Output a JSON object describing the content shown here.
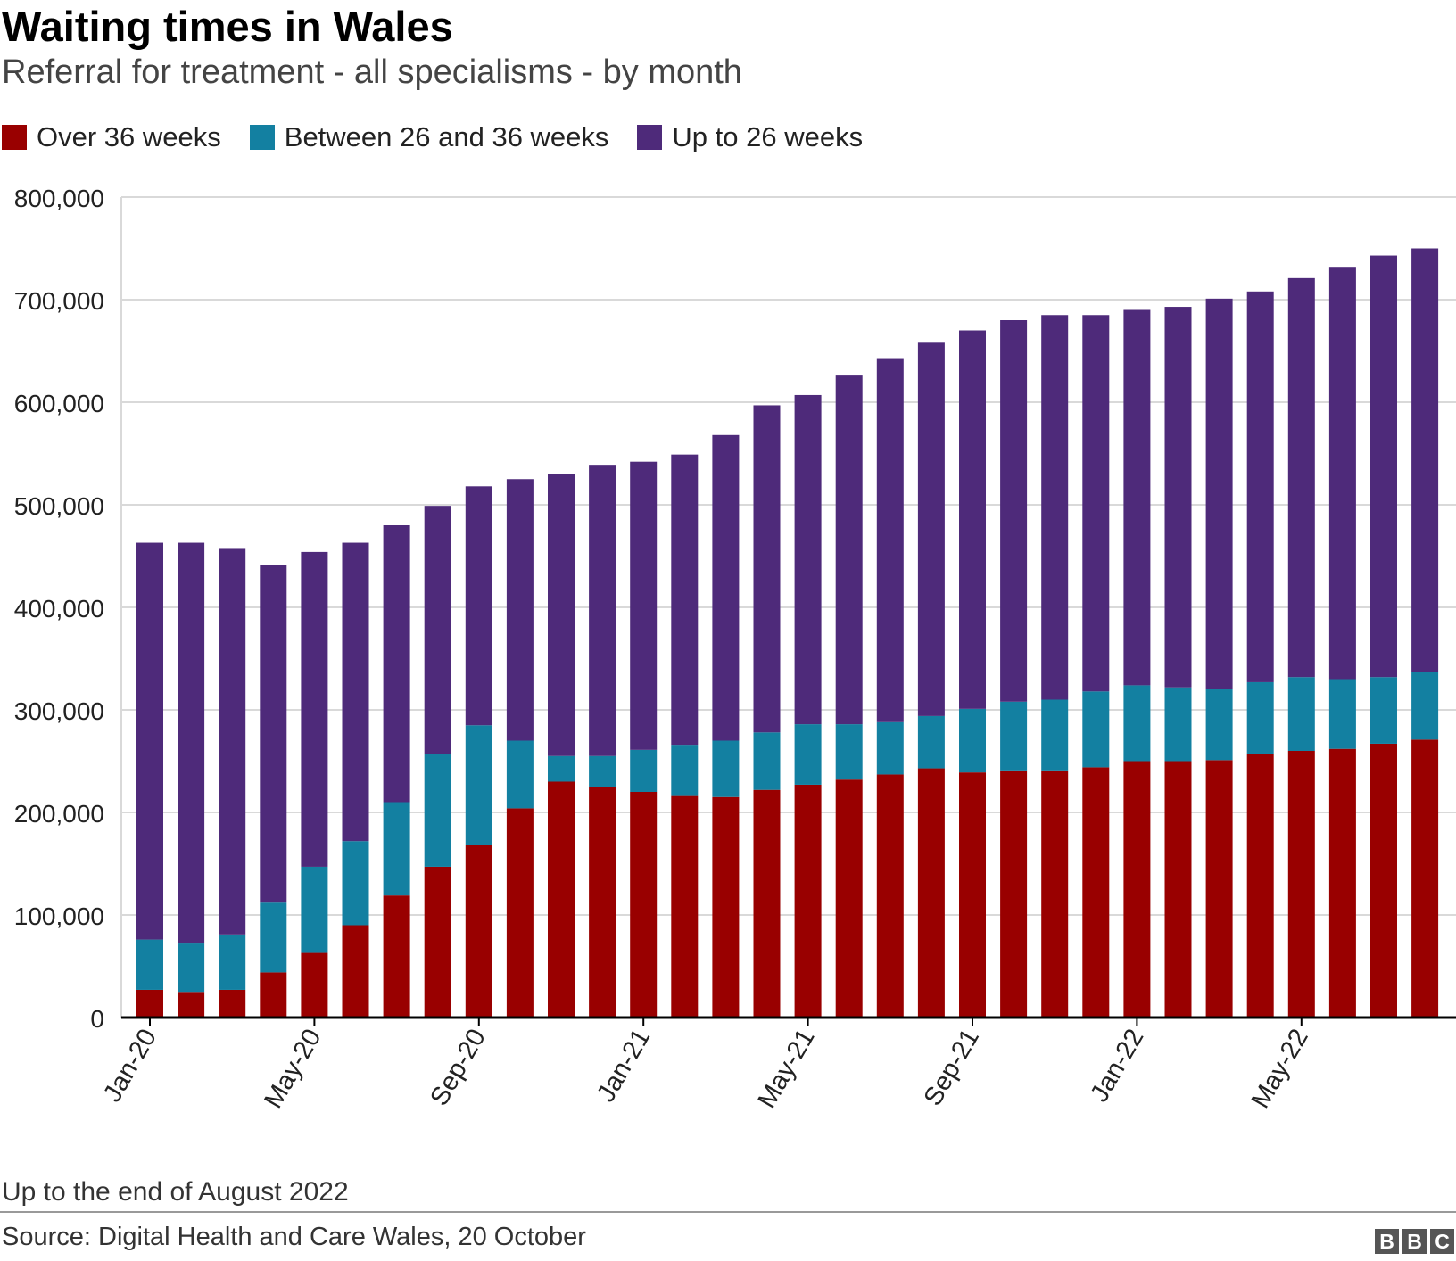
{
  "title": "Waiting times in Wales",
  "subtitle": "Referral for treatment - all specialisms - by month",
  "note": "Up to the end of August 2022",
  "source": "Source: Digital Health and Care Wales, 20 October",
  "logo": {
    "letters": [
      "B",
      "B",
      "C"
    ]
  },
  "colors": {
    "over36": "#990000",
    "between26and36": "#1380A1",
    "upto26": "#4E2A7A",
    "grid": "#D9D9D9",
    "axis": "#000000"
  },
  "legend": [
    {
      "label": "Over 36 weeks",
      "color": "#990000"
    },
    {
      "label": "Between 26 and 36 weeks",
      "color": "#1380A1"
    },
    {
      "label": "Up to 26 weeks",
      "color": "#4E2A7A"
    }
  ],
  "chart_data": {
    "type": "bar",
    "stacked": true,
    "title": "Waiting times in Wales",
    "subtitle": "Referral for treatment - all specialisms - by month",
    "xlabel": "",
    "ylabel": "",
    "ylim": [
      0,
      800000
    ],
    "yticks": [
      0,
      100000,
      200000,
      300000,
      400000,
      500000,
      600000,
      700000,
      800000
    ],
    "ytick_labels": [
      "0",
      "100,000",
      "200,000",
      "300,000",
      "400,000",
      "500,000",
      "600,000",
      "700,000",
      "800,000"
    ],
    "grid": true,
    "legend_position": "top-left",
    "categories": [
      "Jan-20",
      "Feb-20",
      "Mar-20",
      "Apr-20",
      "May-20",
      "Jun-20",
      "Jul-20",
      "Aug-20",
      "Sep-20",
      "Oct-20",
      "Nov-20",
      "Dec-20",
      "Jan-21",
      "Feb-21",
      "Mar-21",
      "Apr-21",
      "May-21",
      "Jun-21",
      "Jul-21",
      "Aug-21",
      "Sep-21",
      "Oct-21",
      "Nov-21",
      "Dec-21",
      "Jan-22",
      "Feb-22",
      "Mar-22",
      "Apr-22",
      "May-22",
      "Jun-22",
      "Jul-22",
      "Aug-22"
    ],
    "visible_tick_labels": [
      "Jan-20",
      "May-20",
      "Sep-20",
      "Jan-21",
      "May-21",
      "Sep-21",
      "Jan-22",
      "May-22"
    ],
    "series": [
      {
        "name": "Over 36 weeks",
        "color": "#990000",
        "values": [
          27000,
          25000,
          27000,
          44000,
          63000,
          90000,
          119000,
          147000,
          168000,
          204000,
          230000,
          225000,
          220000,
          216000,
          215000,
          222000,
          227000,
          232000,
          237000,
          243000,
          239000,
          241000,
          241000,
          244000,
          250000,
          250000,
          251000,
          257000,
          260000,
          262000,
          267000,
          271000
        ]
      },
      {
        "name": "Between 26 and 36 weeks",
        "color": "#1380A1",
        "values": [
          49000,
          48000,
          54000,
          68000,
          84000,
          82000,
          91000,
          110000,
          117000,
          66000,
          25000,
          30000,
          41000,
          50000,
          55000,
          56000,
          59000,
          54000,
          51000,
          51000,
          62000,
          67000,
          69000,
          74000,
          74000,
          72000,
          69000,
          70000,
          72000,
          68000,
          65000,
          66000
        ]
      },
      {
        "name": "Up to 26 weeks",
        "color": "#4E2A7A",
        "values": [
          387000,
          390000,
          376000,
          329000,
          307000,
          291000,
          270000,
          242000,
          233000,
          255000,
          275000,
          284000,
          281000,
          283000,
          298000,
          319000,
          321000,
          340000,
          355000,
          364000,
          369000,
          372000,
          375000,
          367000,
          366000,
          371000,
          381000,
          381000,
          389000,
          402000,
          411000,
          413000
        ]
      }
    ]
  }
}
